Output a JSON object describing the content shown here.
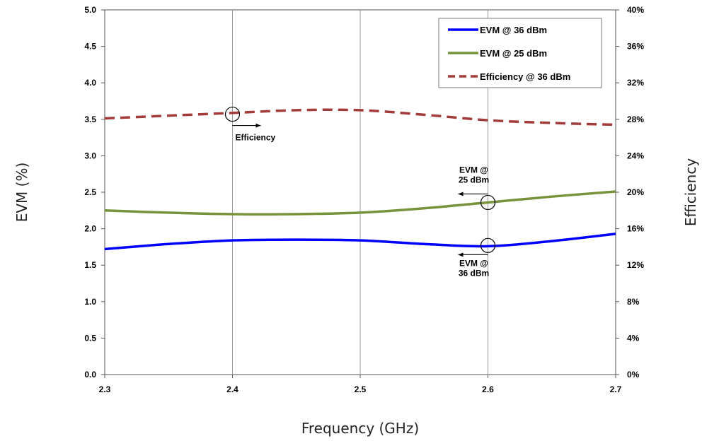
{
  "chart_data": {
    "type": "line",
    "xlabel": "Frequency (GHz)",
    "ylabel": "EVM (%)",
    "y2label": "Efficiency",
    "xlim": [
      2.3,
      2.7
    ],
    "ylim": [
      0,
      5.0
    ],
    "y2lim": [
      0,
      40
    ],
    "x_ticks": [
      "2.3",
      "2.4",
      "2.5",
      "2.6",
      "2.7"
    ],
    "y_ticks": [
      "0.0",
      "0.5",
      "1.0",
      "1.5",
      "2.0",
      "2.5",
      "3.0",
      "3.5",
      "4.0",
      "4.5",
      "5.0"
    ],
    "y2_ticks": [
      "0%",
      "4%",
      "8%",
      "12%",
      "16%",
      "20%",
      "24%",
      "28%",
      "32%",
      "36%",
      "40%"
    ],
    "grid": "vertical",
    "legend_position": "top-right",
    "series": [
      {
        "name": "EVM @ 36 dBm",
        "axis": "left",
        "color": "#0000ff",
        "style": "solid",
        "x": [
          2.3,
          2.35,
          2.4,
          2.45,
          2.5,
          2.55,
          2.6,
          2.65,
          2.7
        ],
        "y": [
          1.72,
          1.79,
          1.84,
          1.85,
          1.84,
          1.79,
          1.76,
          1.83,
          1.93
        ]
      },
      {
        "name": "EVM @ 25 dBm",
        "axis": "left",
        "color": "#76933c",
        "style": "solid",
        "x": [
          2.3,
          2.35,
          2.4,
          2.45,
          2.5,
          2.55,
          2.6,
          2.65,
          2.7
        ],
        "y": [
          2.25,
          2.22,
          2.2,
          2.2,
          2.22,
          2.28,
          2.36,
          2.44,
          2.51
        ]
      },
      {
        "name": "Efficiency @ 36 dBm",
        "axis": "right",
        "color": "#a33b3b",
        "style": "dashed",
        "x": [
          2.3,
          2.35,
          2.4,
          2.45,
          2.5,
          2.55,
          2.6,
          2.65,
          2.7
        ],
        "y": [
          28.1,
          28.4,
          28.7,
          29.0,
          29.0,
          28.5,
          27.9,
          27.6,
          27.4
        ]
      }
    ],
    "annotations": [
      {
        "text": [
          "Efficiency"
        ],
        "x": 2.4,
        "y": 3.57,
        "arrow": "right"
      },
      {
        "text": [
          "EVM @",
          "25 dBm"
        ],
        "x": 2.6,
        "y": 2.36,
        "arrow": "left"
      },
      {
        "text": [
          "EVM @",
          "36 dBm"
        ],
        "x": 2.6,
        "y": 1.77,
        "arrow": "left"
      }
    ]
  }
}
